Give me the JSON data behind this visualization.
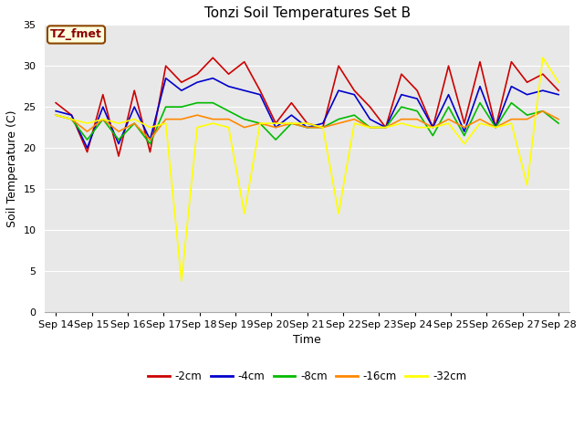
{
  "title": "Tonzi Soil Temperatures Set B",
  "xlabel": "Time",
  "ylabel": "Soil Temperature (C)",
  "annotation": "TZ_fmet",
  "ylim": [
    0,
    35
  ],
  "xtick_labels": [
    "Sep 14",
    "Sep 15",
    "Sep 16",
    "Sep 17",
    "Sep 18",
    "Sep 19",
    "Sep 20",
    "Sep 21",
    "Sep 22",
    "Sep 23",
    "Sep 24",
    "Sep 25",
    "Sep 26",
    "Sep 27",
    "Sep 28"
  ],
  "series": {
    "-2cm": {
      "color": "#cc0000",
      "values": [
        25.5,
        24.0,
        19.5,
        26.5,
        19.0,
        27.0,
        19.5,
        30.0,
        28.0,
        29.0,
        31.0,
        29.0,
        30.5,
        27.0,
        23.0,
        25.5,
        23.0,
        22.5,
        30.0,
        27.0,
        25.0,
        22.5,
        29.0,
        27.0,
        22.5,
        30.0,
        23.0,
        30.5,
        22.5,
        30.5,
        28.0,
        29.0,
        27.0
      ]
    },
    "-4cm": {
      "color": "#0000cc",
      "values": [
        24.5,
        24.0,
        20.0,
        25.0,
        20.5,
        25.0,
        21.0,
        28.5,
        27.0,
        28.0,
        28.5,
        27.5,
        27.0,
        26.5,
        22.5,
        24.0,
        22.5,
        23.0,
        27.0,
        26.5,
        23.5,
        22.5,
        26.5,
        26.0,
        22.5,
        26.5,
        22.0,
        27.5,
        22.5,
        27.5,
        26.5,
        27.0,
        26.5
      ]
    },
    "-8cm": {
      "color": "#00bb00",
      "values": [
        24.0,
        23.5,
        21.0,
        23.5,
        21.0,
        23.0,
        20.5,
        25.0,
        25.0,
        25.5,
        25.5,
        24.5,
        23.5,
        23.0,
        21.0,
        23.0,
        22.5,
        22.5,
        23.5,
        24.0,
        22.5,
        22.5,
        25.0,
        24.5,
        21.5,
        25.0,
        21.5,
        25.5,
        22.5,
        25.5,
        24.0,
        24.5,
        23.0
      ]
    },
    "-16cm": {
      "color": "#ff8800",
      "values": [
        24.0,
        23.5,
        22.0,
        23.5,
        22.0,
        23.0,
        21.0,
        23.5,
        23.5,
        24.0,
        23.5,
        23.5,
        22.5,
        23.0,
        22.5,
        23.0,
        22.5,
        22.5,
        23.0,
        23.5,
        22.5,
        22.5,
        23.5,
        23.5,
        22.5,
        23.5,
        22.5,
        23.5,
        22.5,
        23.5,
        23.5,
        24.5,
        23.5
      ]
    },
    "-32cm": {
      "color": "#ffff00",
      "values": [
        24.0,
        23.5,
        23.0,
        23.5,
        23.0,
        23.5,
        22.5,
        23.0,
        3.8,
        22.5,
        23.0,
        22.5,
        12.0,
        23.0,
        23.0,
        23.0,
        23.0,
        22.5,
        12.0,
        23.0,
        22.5,
        22.5,
        23.0,
        22.5,
        22.5,
        23.0,
        20.5,
        23.0,
        22.5,
        23.0,
        15.5,
        31.0,
        28.0
      ]
    }
  },
  "bg_color": "#ffffff",
  "plot_bg_color": "#e8e8e8",
  "title_fontsize": 11,
  "axis_label_fontsize": 9,
  "tick_fontsize": 8,
  "legend_fontsize": 8.5,
  "annot_fontsize": 9
}
